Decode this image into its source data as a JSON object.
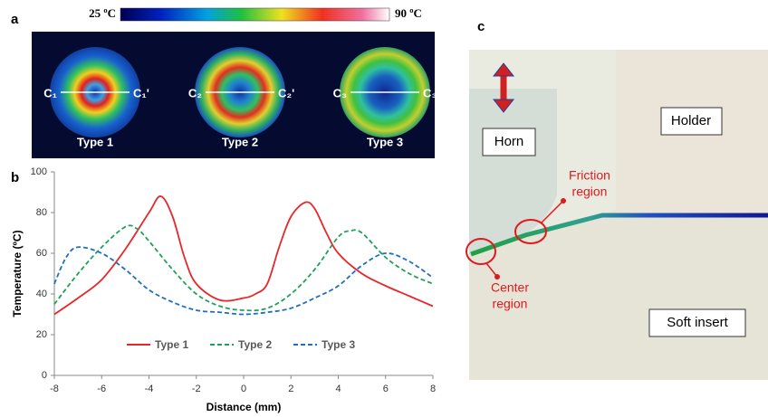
{
  "panel_labels": [
    "a",
    "b",
    "c"
  ],
  "colorbar": {
    "min_label": "25 ºC",
    "max_label": "90 ºC"
  },
  "thermal_images": [
    {
      "label": "Type 1",
      "left": "C₁",
      "right": "C₁'"
    },
    {
      "label": "Type 2",
      "left": "C₂",
      "right": "C₂'"
    },
    {
      "label": "Type 3",
      "left": "C₃",
      "right": "C₃'"
    }
  ],
  "diagram": {
    "horn": "Horn",
    "holder": "Holder",
    "soft_insert": "Soft insert",
    "friction_region": [
      "Friction",
      "region"
    ],
    "center_region": [
      "Center",
      "region"
    ]
  },
  "chart_data": {
    "type": "line",
    "x_label": "Distance (mm)",
    "y_label": "Temperature (ºC)",
    "xlim": [
      -8,
      8
    ],
    "xticks": [
      -8,
      -6,
      -4,
      -2,
      0,
      2,
      4,
      6,
      8
    ],
    "ylim": [
      0,
      100
    ],
    "yticks": [
      0,
      20,
      40,
      60,
      80,
      100
    ],
    "legend": "bottom",
    "series": [
      {
        "name": "Type 1",
        "color": "#e8262a",
        "line_style": "solid",
        "x": [
          -8,
          -7,
          -6,
          -5,
          -4,
          -3.5,
          -3,
          -2.5,
          -2,
          -1,
          0,
          0.5,
          1,
          1.5,
          2,
          2.6,
          3,
          3.5,
          4,
          5,
          6,
          7,
          8
        ],
        "values": [
          30,
          38,
          47,
          62,
          80,
          88,
          78,
          58,
          45,
          37,
          38,
          40,
          45,
          63,
          78,
          85,
          82,
          70,
          60,
          50,
          44,
          39,
          34
        ]
      },
      {
        "name": "Type 2",
        "color": "#1fa05a",
        "line_style": "dashed",
        "x": [
          -8,
          -7,
          -6,
          -5,
          -4.5,
          -4,
          -3,
          -2,
          -1,
          0,
          1,
          2,
          3,
          4,
          4.5,
          5,
          6,
          7,
          8
        ],
        "values": [
          35,
          50,
          63,
          73,
          72,
          66,
          52,
          40,
          34,
          32,
          33,
          40,
          52,
          68,
          71,
          70,
          58,
          50,
          45
        ]
      },
      {
        "name": "Type 3",
        "color": "#1f6fbf",
        "line_style": "dashed",
        "x": [
          -8,
          -7.5,
          -7,
          -6,
          -5,
          -4,
          -3,
          -2,
          -1,
          0,
          1,
          2,
          3,
          4,
          5,
          6,
          7,
          8
        ],
        "values": [
          45,
          58,
          63,
          60,
          52,
          42,
          36,
          32,
          31,
          30,
          31,
          33,
          38,
          44,
          54,
          60,
          56,
          48
        ]
      }
    ]
  }
}
